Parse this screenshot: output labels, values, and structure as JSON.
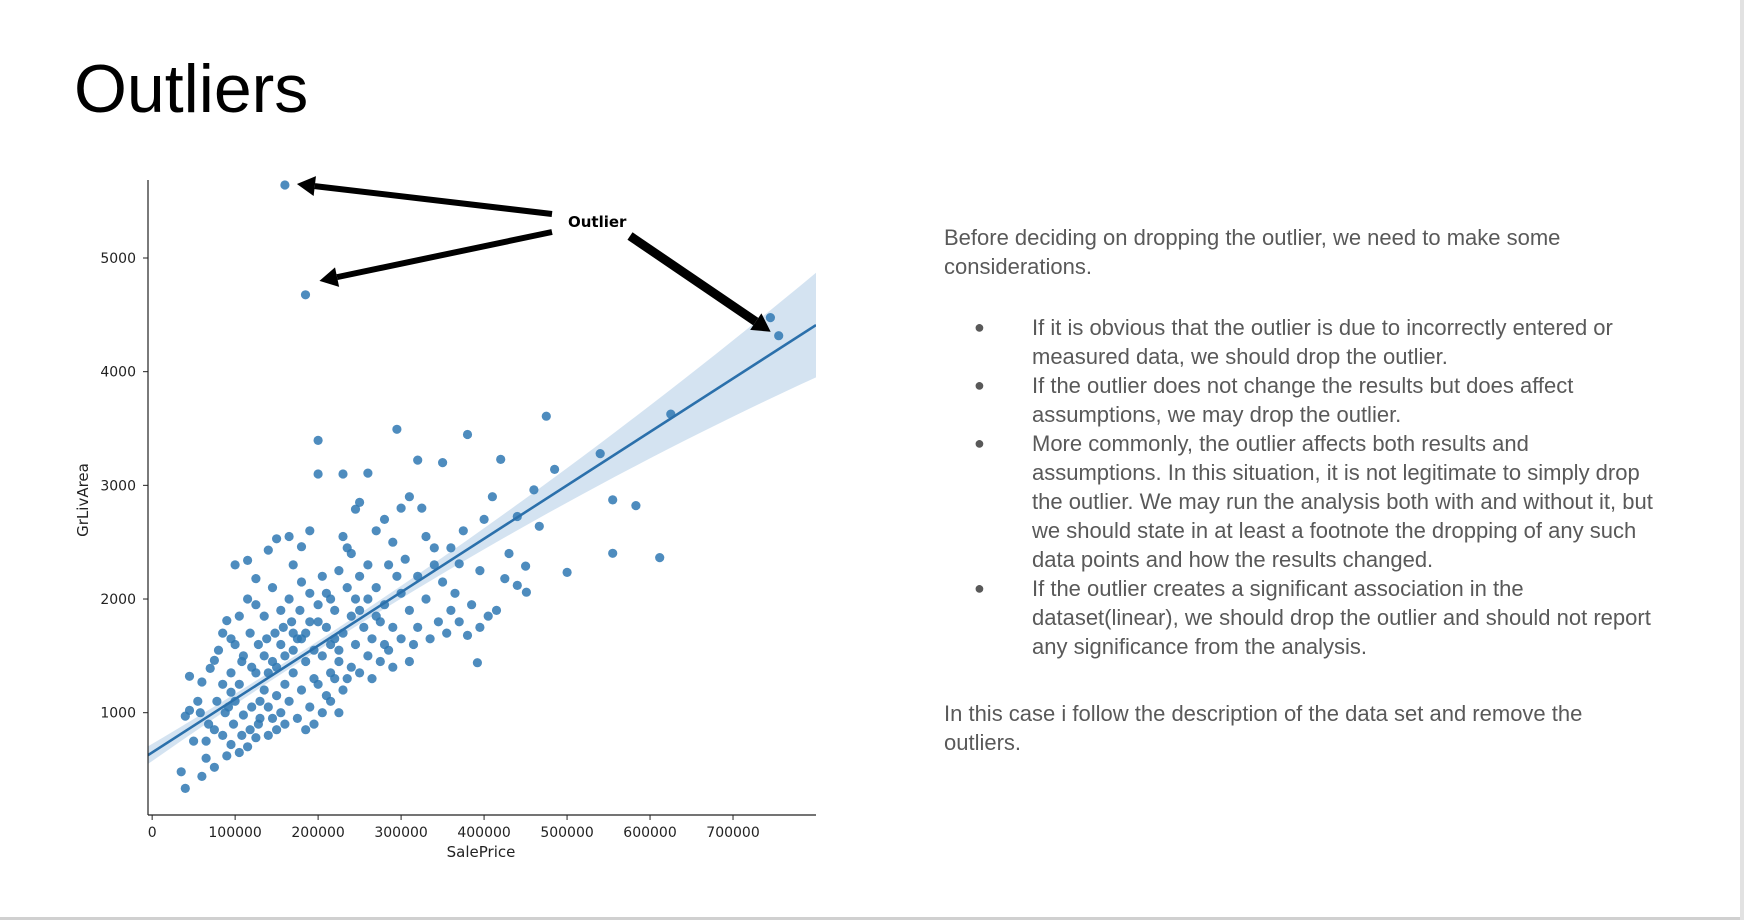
{
  "slide": {
    "title": "Outliers",
    "intro": "Before deciding on dropping the outlier, we need to make some considerations.",
    "bullets": [
      "If it is obvious that the outlier is due to incorrectly entered or measured data, we should drop the outlier.",
      "If the outlier does not change the results but does affect assumptions, we may drop the outlier.",
      "More commonly, the outlier affects both results and assumptions.  In this situation, it is not legitimate to simply drop the outlier.  We may run the analysis both with and without it, but we should state in at least a footnote the dropping of any such data points and how the results changed.",
      "If the outlier creates a significant association in the dataset(linear), we should drop the outlier and should not report any significance from the analysis."
    ],
    "bullet_glyph": "●",
    "closing": "In this case i follow the description of the data set and remove the outliers."
  },
  "chart_data": {
    "type": "scatter",
    "title": "",
    "xlabel": "SalePrice",
    "ylabel": "GrLivArea",
    "xlim": [
      -5000,
      800000
    ],
    "ylim": [
      100,
      5950
    ],
    "xticks": [
      0,
      100000,
      200000,
      300000,
      400000,
      500000,
      600000,
      700000
    ],
    "yticks": [
      1000,
      2000,
      3000,
      4000,
      5000
    ],
    "annotation": "Outlier",
    "outliers": [
      [
        160000,
        5642
      ],
      [
        184750,
        4676
      ],
      [
        745000,
        4476
      ],
      [
        755000,
        4316
      ]
    ],
    "regression": {
      "intercept": 650,
      "slope": 0.0047
    },
    "points": [
      [
        475000,
        3608
      ],
      [
        380000,
        3447
      ],
      [
        295000,
        3493
      ],
      [
        200000,
        3395
      ],
      [
        625000,
        3627
      ],
      [
        540000,
        3279
      ],
      [
        555000,
        2872
      ],
      [
        582933,
        2822
      ],
      [
        611657,
        2364
      ],
      [
        555000,
        2402
      ],
      [
        500000,
        2234
      ],
      [
        485000,
        3140
      ],
      [
        466500,
        2640
      ],
      [
        450000,
        2290
      ],
      [
        440000,
        2726
      ],
      [
        430000,
        2400
      ],
      [
        420000,
        3228
      ],
      [
        410000,
        2900
      ],
      [
        400000,
        2700
      ],
      [
        392000,
        1440
      ],
      [
        395000,
        1750
      ],
      [
        375000,
        2600
      ],
      [
        350000,
        3200
      ],
      [
        320000,
        3222
      ],
      [
        310000,
        2900
      ],
      [
        260000,
        3108
      ],
      [
        250000,
        2850
      ],
      [
        230000,
        3100
      ],
      [
        200000,
        3100
      ],
      [
        460000,
        2960
      ],
      [
        451000,
        2060
      ],
      [
        440000,
        2120
      ],
      [
        425000,
        2180
      ],
      [
        405000,
        1850
      ],
      [
        385000,
        1950
      ],
      [
        370000,
        2310
      ],
      [
        360000,
        2450
      ],
      [
        340000,
        2450
      ],
      [
        325000,
        2800
      ],
      [
        300000,
        2800
      ],
      [
        290000,
        2500
      ],
      [
        280000,
        2700
      ],
      [
        270000,
        2600
      ],
      [
        245000,
        2790
      ],
      [
        235000,
        2450
      ],
      [
        190000,
        2600
      ],
      [
        180000,
        2460
      ],
      [
        165000,
        2550
      ],
      [
        150000,
        2530
      ],
      [
        140000,
        2430
      ],
      [
        125000,
        2180
      ],
      [
        115000,
        2340
      ],
      [
        100000,
        2300
      ],
      [
        90000,
        1810
      ],
      [
        85000,
        1700
      ],
      [
        80000,
        1550
      ],
      [
        75000,
        1460
      ],
      [
        70000,
        1390
      ],
      [
        60000,
        1270
      ],
      [
        55000,
        1100
      ],
      [
        45000,
        1320
      ],
      [
        40000,
        970
      ],
      [
        35000,
        480
      ],
      [
        40000,
        334
      ],
      [
        60000,
        440
      ],
      [
        65000,
        600
      ],
      [
        75000,
        520
      ],
      [
        90000,
        620
      ],
      [
        50000,
        750
      ],
      [
        45000,
        1020
      ],
      [
        120000,
        1050
      ],
      [
        130000,
        1100
      ],
      [
        110000,
        980
      ],
      [
        105000,
        1250
      ],
      [
        95000,
        1180
      ],
      [
        140000,
        1350
      ],
      [
        150000,
        1400
      ],
      [
        135000,
        1200
      ],
      [
        160000,
        1500
      ],
      [
        170000,
        1550
      ],
      [
        175000,
        1650
      ],
      [
        185000,
        1700
      ],
      [
        200000,
        1800
      ],
      [
        210000,
        1750
      ],
      [
        220000,
        1650
      ],
      [
        230000,
        1700
      ],
      [
        240000,
        1850
      ],
      [
        250000,
        1900
      ],
      [
        260000,
        2000
      ],
      [
        270000,
        2100
      ],
      [
        280000,
        1950
      ],
      [
        300000,
        2050
      ],
      [
        310000,
        1900
      ],
      [
        320000,
        2200
      ],
      [
        330000,
        2000
      ],
      [
        345000,
        1800
      ],
      [
        355000,
        1700
      ],
      [
        365000,
        2050
      ],
      [
        380000,
        1680
      ],
      [
        395000,
        2250
      ],
      [
        415000,
        1900
      ],
      [
        300000,
        1650
      ],
      [
        285000,
        1550
      ],
      [
        260000,
        1500
      ],
      [
        245000,
        1600
      ],
      [
        225000,
        1450
      ],
      [
        215000,
        1350
      ],
      [
        195000,
        1300
      ],
      [
        180000,
        1200
      ],
      [
        165000,
        1100
      ],
      [
        155000,
        1000
      ],
      [
        145000,
        950
      ],
      [
        128000,
        900
      ],
      [
        118000,
        850
      ],
      [
        108000,
        800
      ],
      [
        98000,
        900
      ],
      [
        88000,
        1000
      ],
      [
        78000,
        1100
      ],
      [
        68000,
        900
      ],
      [
        58000,
        1000
      ],
      [
        200000,
        1250
      ],
      [
        210000,
        1150
      ],
      [
        190000,
        1050
      ],
      [
        175000,
        950
      ],
      [
        170000,
        1350
      ],
      [
        160000,
        1250
      ],
      [
        150000,
        1150
      ],
      [
        140000,
        1050
      ],
      [
        130000,
        950
      ],
      [
        185000,
        1450
      ],
      [
        195000,
        1550
      ],
      [
        205000,
        1500
      ],
      [
        215000,
        1600
      ],
      [
        225000,
        1550
      ],
      [
        235000,
        1300
      ],
      [
        120000,
        1400
      ],
      [
        110000,
        1500
      ],
      [
        100000,
        1600
      ],
      [
        95000,
        1350
      ],
      [
        85000,
        1250
      ],
      [
        235000,
        2100
      ],
      [
        225000,
        2250
      ],
      [
        215000,
        2000
      ],
      [
        205000,
        2200
      ],
      [
        190000,
        2050
      ],
      [
        178000,
        1900
      ],
      [
        168000,
        1800
      ],
      [
        158000,
        1750
      ],
      [
        148000,
        1700
      ],
      [
        138000,
        1650
      ],
      [
        128000,
        1600
      ],
      [
        118000,
        1700
      ],
      [
        108000,
        1450
      ],
      [
        100000,
        1100
      ],
      [
        92000,
        1050
      ],
      [
        275000,
        1800
      ],
      [
        290000,
        1750
      ],
      [
        265000,
        1650
      ],
      [
        255000,
        1750
      ],
      [
        245000,
        2000
      ],
      [
        335000,
        1650
      ],
      [
        315000,
        1600
      ],
      [
        305000,
        2350
      ],
      [
        295000,
        2200
      ],
      [
        285000,
        2300
      ],
      [
        350000,
        2150
      ],
      [
        360000,
        1900
      ],
      [
        370000,
        1800
      ],
      [
        340000,
        2300
      ],
      [
        330000,
        2550
      ],
      [
        250000,
        1350
      ],
      [
        240000,
        1400
      ],
      [
        230000,
        1200
      ],
      [
        220000,
        1300
      ],
      [
        275000,
        1450
      ],
      [
        265000,
        1300
      ],
      [
        155000,
        1600
      ],
      [
        145000,
        1450
      ],
      [
        135000,
        1500
      ],
      [
        125000,
        1350
      ],
      [
        165000,
        2000
      ],
      [
        155000,
        1900
      ],
      [
        145000,
        2100
      ],
      [
        135000,
        1850
      ],
      [
        125000,
        1950
      ],
      [
        115000,
        2000
      ],
      [
        105000,
        1850
      ],
      [
        95000,
        1650
      ],
      [
        180000,
        2150
      ],
      [
        170000,
        2300
      ],
      [
        140000,
        800
      ],
      [
        150000,
        850
      ],
      [
        160000,
        900
      ],
      [
        125000,
        780
      ],
      [
        115000,
        700
      ],
      [
        105000,
        650
      ],
      [
        95000,
        720
      ],
      [
        85000,
        800
      ],
      [
        75000,
        850
      ],
      [
        65000,
        750
      ],
      [
        205000,
        1000
      ],
      [
        215000,
        1100
      ],
      [
        225000,
        1000
      ],
      [
        195000,
        900
      ],
      [
        185000,
        850
      ],
      [
        320000,
        1750
      ],
      [
        310000,
        1450
      ],
      [
        290000,
        1400
      ],
      [
        280000,
        1600
      ],
      [
        270000,
        1850
      ],
      [
        260000,
        2300
      ],
      [
        250000,
        2200
      ],
      [
        240000,
        2400
      ],
      [
        230000,
        2550
      ],
      [
        220000,
        1900
      ],
      [
        210000,
        2050
      ],
      [
        200000,
        1950
      ],
      [
        190000,
        1800
      ],
      [
        180000,
        1650
      ],
      [
        170000,
        1700
      ]
    ]
  },
  "colors": {
    "point": "#2f78b3",
    "line": "#2b70ab",
    "ci_band": "#c6d9ec",
    "text_body": "#595959",
    "annotation_arrow": "#000000"
  }
}
